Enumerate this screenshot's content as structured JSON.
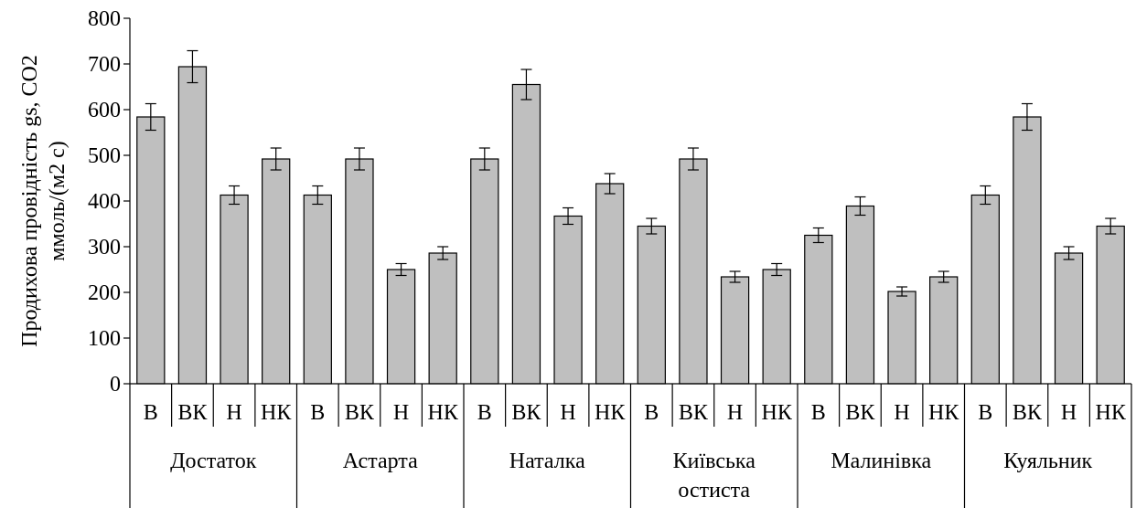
{
  "chart_data": {
    "type": "bar",
    "title": "",
    "ylabel_lines": [
      "Продихова провідність gs, CO2",
      "ммоль/(м2 с)"
    ],
    "xlabel": "",
    "ylim": [
      0,
      800
    ],
    "yticks": [
      0,
      100,
      200,
      300,
      400,
      500,
      600,
      700,
      800
    ],
    "grid": false,
    "legend": "none",
    "bar_color": "#bfbfbf",
    "groups": [
      {
        "name": "Достаток",
        "name_lines": [
          "Достаток"
        ],
        "categories": [
          "В",
          "ВК",
          "Н",
          "НК"
        ],
        "values": [
          584,
          694,
          413,
          492
        ],
        "errors": [
          29,
          35,
          20,
          24
        ]
      },
      {
        "name": "Астарта",
        "name_lines": [
          "Астарта"
        ],
        "categories": [
          "В",
          "ВК",
          "Н",
          "НК"
        ],
        "values": [
          413,
          492,
          250,
          286
        ],
        "errors": [
          20,
          24,
          13,
          14
        ]
      },
      {
        "name": "Наталка",
        "name_lines": [
          "Наталка"
        ],
        "categories": [
          "В",
          "ВК",
          "Н",
          "НК"
        ],
        "values": [
          492,
          655,
          367,
          438
        ],
        "errors": [
          24,
          33,
          18,
          22
        ]
      },
      {
        "name": "Київська остиста",
        "name_lines": [
          "Київська",
          "остиста"
        ],
        "categories": [
          "В",
          "ВК",
          "Н",
          "НК"
        ],
        "values": [
          345,
          492,
          234,
          250
        ],
        "errors": [
          17,
          24,
          12,
          13
        ]
      },
      {
        "name": "Малинівка",
        "name_lines": [
          "Малинівка"
        ],
        "categories": [
          "В",
          "ВК",
          "Н",
          "НК"
        ],
        "values": [
          325,
          389,
          202,
          234
        ],
        "errors": [
          16,
          20,
          10,
          12
        ]
      },
      {
        "name": "Куяльник",
        "name_lines": [
          "Куяльник"
        ],
        "categories": [
          "В",
          "ВК",
          "Н",
          "НК"
        ],
        "values": [
          413,
          584,
          286,
          345
        ],
        "errors": [
          20,
          29,
          14,
          17
        ]
      }
    ]
  }
}
